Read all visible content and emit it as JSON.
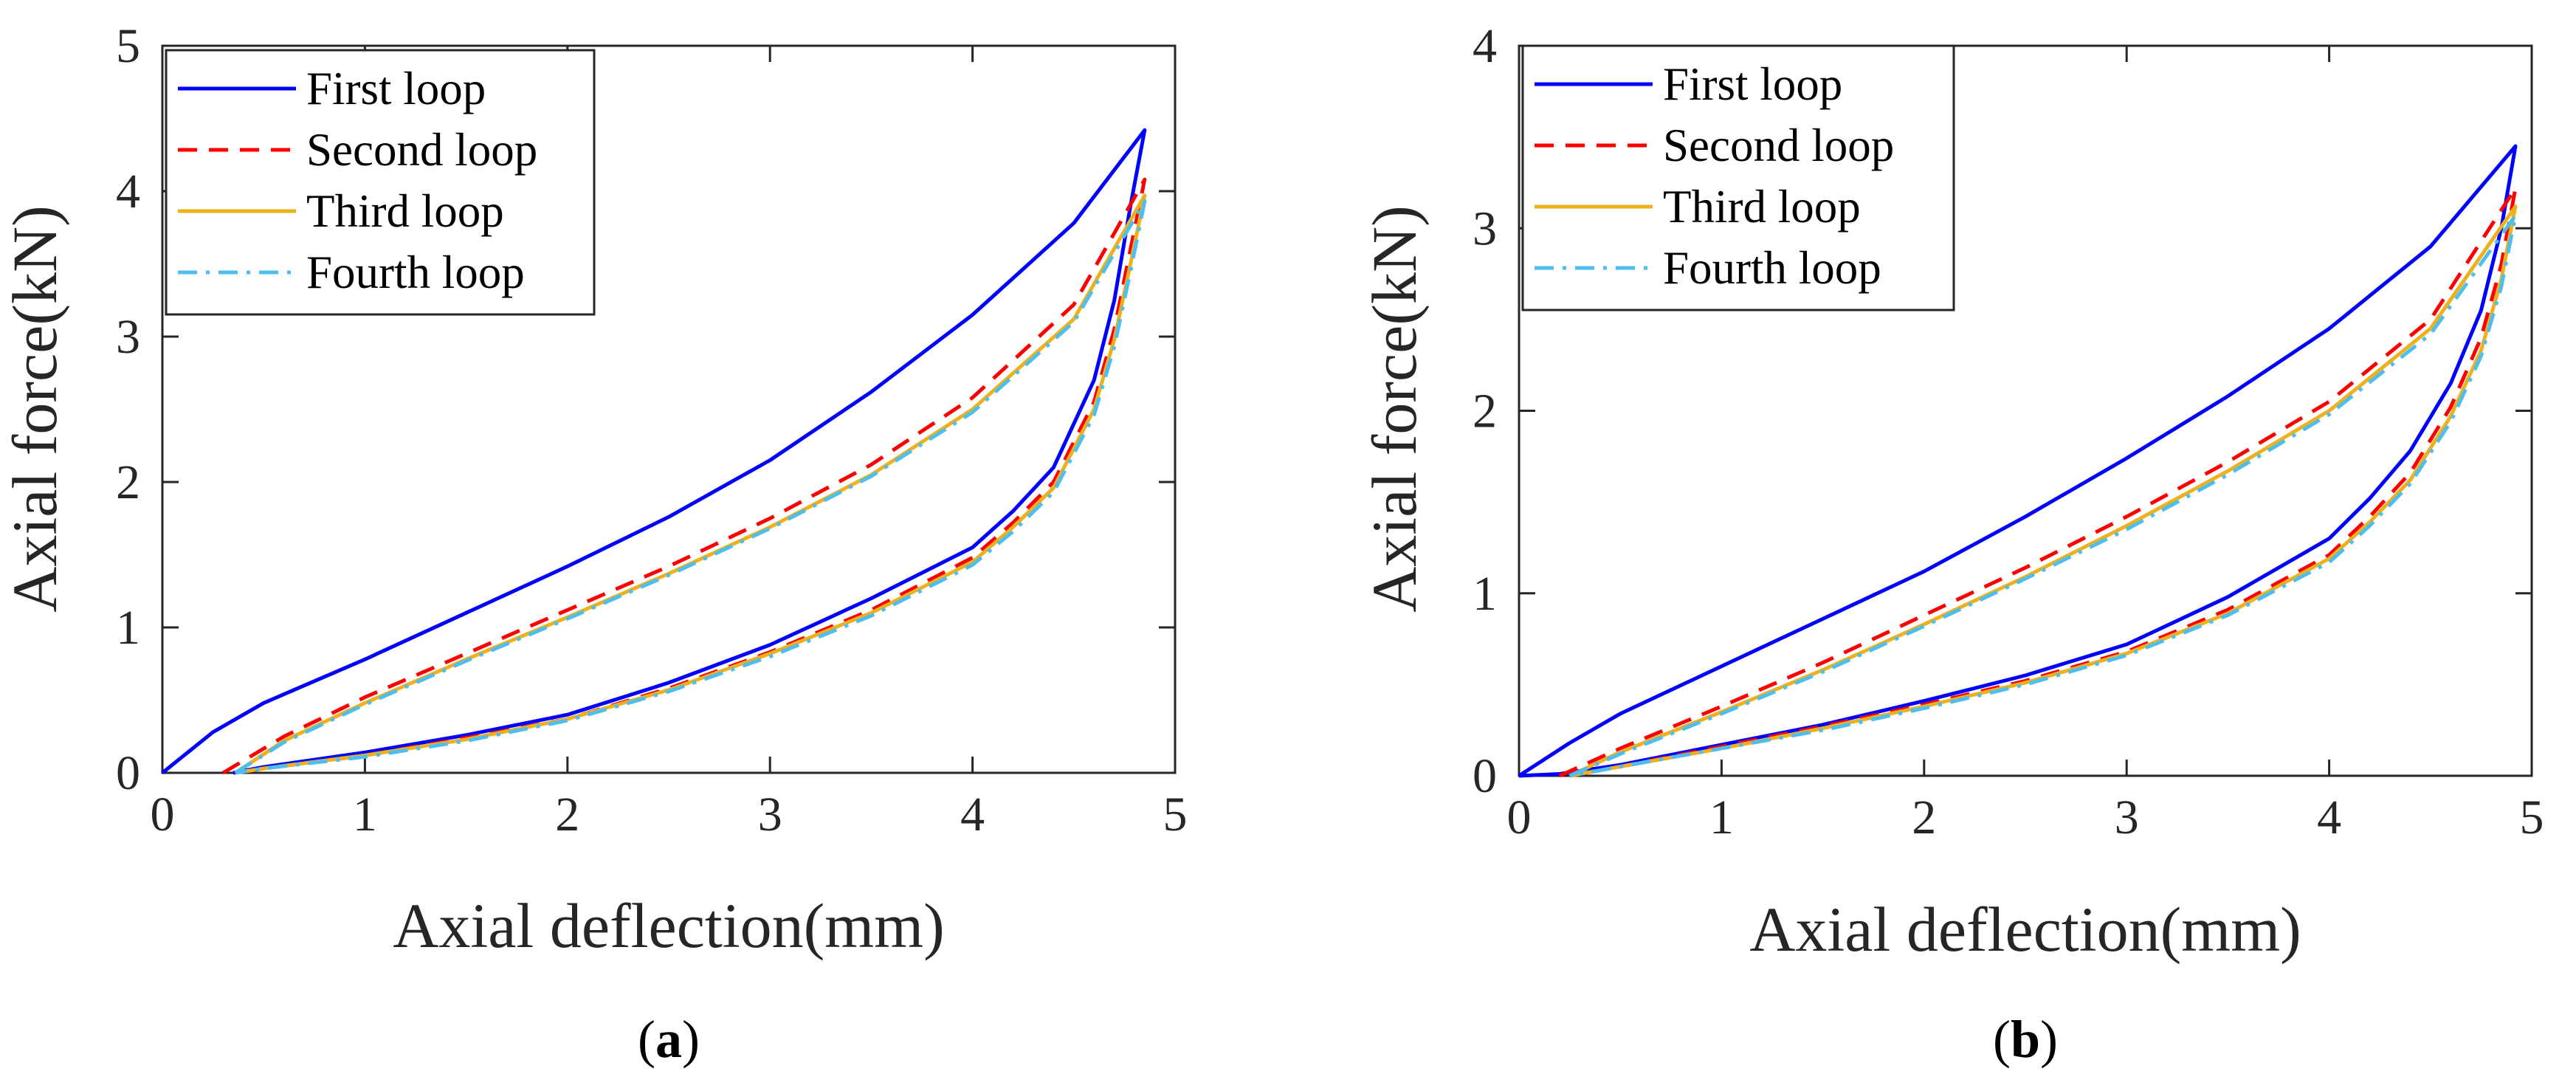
{
  "chart_data": [
    {
      "type": "line",
      "panel_label": "a",
      "xlabel": "Axial deflection(mm)",
      "ylabel": "Axial force(kN)",
      "xlim": [
        0,
        5
      ],
      "ylim": [
        0,
        5
      ],
      "xticks": [
        "0",
        "1",
        "2",
        "3",
        "4",
        "5"
      ],
      "yticks": [
        "0",
        "1",
        "2",
        "3",
        "4",
        "5"
      ],
      "grid": false,
      "legend_position": "top-left",
      "series": [
        {
          "name": "First loop",
          "color": "#0000ff",
          "dash": "solid",
          "loading_x": [
            0.0,
            0.25,
            0.5,
            1.0,
            1.5,
            2.0,
            2.5,
            3.0,
            3.5,
            4.0,
            4.5,
            4.85
          ],
          "loading_y": [
            0.0,
            0.28,
            0.48,
            0.78,
            1.1,
            1.42,
            1.76,
            2.15,
            2.62,
            3.15,
            3.78,
            4.42
          ],
          "unloading_x": [
            4.85,
            4.78,
            4.7,
            4.6,
            4.4,
            4.2,
            4.0,
            3.5,
            3.0,
            2.5,
            2.0,
            1.5,
            1.0,
            0.5,
            0.35
          ],
          "unloading_y": [
            4.42,
            3.9,
            3.25,
            2.7,
            2.1,
            1.8,
            1.55,
            1.2,
            0.88,
            0.62,
            0.4,
            0.26,
            0.14,
            0.04,
            0.0
          ]
        },
        {
          "name": "Second loop",
          "color": "#ff0000",
          "dash": "dashed",
          "loading_x": [
            0.3,
            0.6,
            1.0,
            1.5,
            2.0,
            2.5,
            3.0,
            3.5,
            4.0,
            4.5,
            4.85
          ],
          "loading_y": [
            0.0,
            0.25,
            0.52,
            0.82,
            1.12,
            1.42,
            1.75,
            2.12,
            2.58,
            3.22,
            4.08
          ],
          "unloading_x": [
            4.85,
            4.78,
            4.7,
            4.6,
            4.4,
            4.2,
            4.0,
            3.5,
            3.0,
            2.5,
            2.0,
            1.5,
            1.0,
            0.5,
            0.36
          ],
          "unloading_y": [
            4.08,
            3.6,
            3.05,
            2.55,
            2.0,
            1.72,
            1.48,
            1.12,
            0.83,
            0.58,
            0.37,
            0.24,
            0.12,
            0.03,
            0.0
          ]
        },
        {
          "name": "Third loop",
          "color": "#edb120",
          "dash": "solid",
          "loading_x": [
            0.36,
            0.6,
            1.0,
            1.5,
            2.0,
            2.5,
            3.0,
            3.5,
            4.0,
            4.5,
            4.85
          ],
          "loading_y": [
            0.0,
            0.22,
            0.48,
            0.78,
            1.07,
            1.37,
            1.69,
            2.05,
            2.5,
            3.12,
            3.97
          ],
          "unloading_x": [
            4.85,
            4.78,
            4.7,
            4.6,
            4.4,
            4.2,
            4.0,
            3.5,
            3.0,
            2.5,
            2.0,
            1.5,
            1.0,
            0.5,
            0.36
          ],
          "unloading_y": [
            3.97,
            3.5,
            2.98,
            2.5,
            1.96,
            1.69,
            1.45,
            1.1,
            0.82,
            0.57,
            0.37,
            0.23,
            0.12,
            0.03,
            0.0
          ]
        },
        {
          "name": "Fourth loop",
          "color": "#4dbeee",
          "dash": "dashdot",
          "loading_x": [
            0.36,
            0.6,
            1.0,
            1.5,
            2.0,
            2.5,
            3.0,
            3.5,
            4.0,
            4.5,
            4.85
          ],
          "loading_y": [
            0.0,
            0.21,
            0.47,
            0.77,
            1.06,
            1.36,
            1.68,
            2.04,
            2.48,
            3.1,
            3.93
          ],
          "unloading_x": [
            4.85,
            4.78,
            4.7,
            4.6,
            4.4,
            4.2,
            4.0,
            3.5,
            3.0,
            2.5,
            2.0,
            1.5,
            1.0,
            0.5,
            0.36
          ],
          "unloading_y": [
            3.93,
            3.45,
            2.93,
            2.46,
            1.93,
            1.66,
            1.43,
            1.08,
            0.8,
            0.56,
            0.36,
            0.22,
            0.11,
            0.03,
            0.0
          ]
        }
      ]
    },
    {
      "type": "line",
      "panel_label": "b",
      "xlabel": "Axial deflection(mm)",
      "ylabel": "Axial force(kN)",
      "xlim": [
        0,
        5
      ],
      "ylim": [
        0,
        4
      ],
      "xticks": [
        "0",
        "1",
        "2",
        "3",
        "4",
        "5"
      ],
      "yticks": [
        "0",
        "1",
        "2",
        "3",
        "4"
      ],
      "grid": false,
      "legend_position": "top-left",
      "series": [
        {
          "name": "First loop",
          "color": "#0000ff",
          "dash": "solid",
          "loading_x": [
            0.0,
            0.25,
            0.5,
            1.0,
            1.5,
            2.0,
            2.5,
            3.0,
            3.5,
            4.0,
            4.5,
            4.92
          ],
          "loading_y": [
            0.0,
            0.18,
            0.34,
            0.6,
            0.86,
            1.12,
            1.42,
            1.74,
            2.08,
            2.45,
            2.9,
            3.45
          ],
          "unloading_x": [
            4.92,
            4.85,
            4.75,
            4.6,
            4.4,
            4.2,
            4.0,
            3.5,
            3.0,
            2.5,
            2.0,
            1.5,
            1.0,
            0.5,
            0.2,
            0.0
          ],
          "unloading_y": [
            3.45,
            3.0,
            2.55,
            2.15,
            1.78,
            1.52,
            1.3,
            0.98,
            0.72,
            0.55,
            0.41,
            0.28,
            0.17,
            0.06,
            0.01,
            0.0
          ]
        },
        {
          "name": "Second loop",
          "color": "#ff0000",
          "dash": "dashed",
          "loading_x": [
            0.2,
            0.5,
            1.0,
            1.5,
            2.0,
            2.5,
            3.0,
            3.5,
            4.0,
            4.5,
            4.92
          ],
          "loading_y": [
            0.0,
            0.15,
            0.38,
            0.62,
            0.88,
            1.14,
            1.42,
            1.72,
            2.05,
            2.5,
            3.22
          ],
          "unloading_x": [
            4.92,
            4.85,
            4.75,
            4.6,
            4.4,
            4.2,
            4.0,
            3.5,
            3.0,
            2.5,
            2.0,
            1.5,
            1.0,
            0.5,
            0.25
          ],
          "unloading_y": [
            3.22,
            2.8,
            2.4,
            2.02,
            1.66,
            1.42,
            1.21,
            0.91,
            0.68,
            0.52,
            0.39,
            0.27,
            0.16,
            0.05,
            0.0
          ]
        },
        {
          "name": "Third loop",
          "color": "#edb120",
          "dash": "solid",
          "loading_x": [
            0.25,
            0.5,
            1.0,
            1.5,
            2.0,
            2.5,
            3.0,
            3.5,
            4.0,
            4.5,
            4.92
          ],
          "loading_y": [
            0.0,
            0.13,
            0.35,
            0.58,
            0.83,
            1.09,
            1.37,
            1.67,
            2.0,
            2.45,
            3.12
          ],
          "unloading_x": [
            4.92,
            4.85,
            4.75,
            4.6,
            4.4,
            4.2,
            4.0,
            3.5,
            3.0,
            2.5,
            2.0,
            1.5,
            1.0,
            0.5,
            0.25
          ],
          "unloading_y": [
            3.12,
            2.72,
            2.33,
            1.97,
            1.62,
            1.39,
            1.19,
            0.89,
            0.67,
            0.51,
            0.38,
            0.26,
            0.15,
            0.05,
            0.0
          ]
        },
        {
          "name": "Fourth loop",
          "color": "#4dbeee",
          "dash": "dashdot",
          "loading_x": [
            0.25,
            0.5,
            1.0,
            1.5,
            2.0,
            2.5,
            3.0,
            3.5,
            4.0,
            4.5,
            4.92
          ],
          "loading_y": [
            0.0,
            0.12,
            0.34,
            0.57,
            0.82,
            1.08,
            1.35,
            1.65,
            1.98,
            2.42,
            3.07
          ],
          "unloading_x": [
            4.92,
            4.85,
            4.75,
            4.6,
            4.4,
            4.2,
            4.0,
            3.5,
            3.0,
            2.5,
            2.0,
            1.5,
            1.0,
            0.5,
            0.25
          ],
          "unloading_y": [
            3.07,
            2.68,
            2.3,
            1.94,
            1.6,
            1.37,
            1.17,
            0.88,
            0.66,
            0.5,
            0.37,
            0.25,
            0.15,
            0.05,
            0.0
          ]
        }
      ]
    }
  ]
}
